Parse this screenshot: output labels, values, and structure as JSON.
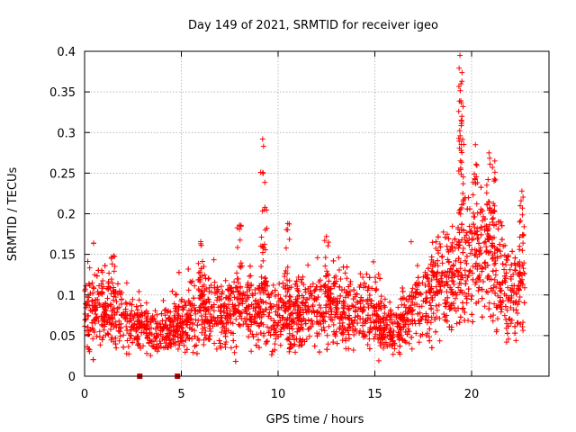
{
  "chart_data": {
    "type": "scatter",
    "title": "Day 149 of 2021, SRMTID for receiver igeo",
    "xlabel": "GPS time / hours",
    "ylabel": "SRMTID / TECUs",
    "xlim": [
      0,
      24
    ],
    "ylim": [
      0,
      0.4
    ],
    "xticks": [
      0,
      5,
      10,
      15,
      20
    ],
    "xtick_labels": [
      "0",
      "5",
      "10",
      "15",
      "20"
    ],
    "yticks": [
      0,
      0.05,
      0.1,
      0.15,
      0.2,
      0.25,
      0.3,
      0.35,
      0.4
    ],
    "ytick_labels": [
      "0",
      "0.05",
      "0.1",
      "0.15",
      "0.2",
      "0.25",
      "0.3",
      "0.35",
      "0.4"
    ],
    "grid": true,
    "marker": "+",
    "color": "#ff0000",
    "zero_marker_color": "#cc0000",
    "series": [
      {
        "name": "SRMTID",
        "x_range": [
          0,
          22.75
        ],
        "n_points": 3200,
        "baseline_profile": [
          [
            0.0,
            0.075
          ],
          [
            1.0,
            0.085
          ],
          [
            2.0,
            0.07
          ],
          [
            3.0,
            0.06
          ],
          [
            4.0,
            0.055
          ],
          [
            5.0,
            0.065
          ],
          [
            6.0,
            0.08
          ],
          [
            7.0,
            0.075
          ],
          [
            8.0,
            0.08
          ],
          [
            9.0,
            0.085
          ],
          [
            10.0,
            0.075
          ],
          [
            11.0,
            0.08
          ],
          [
            12.0,
            0.085
          ],
          [
            13.0,
            0.08
          ],
          [
            14.0,
            0.08
          ],
          [
            15.0,
            0.075
          ],
          [
            16.0,
            0.055
          ],
          [
            17.0,
            0.08
          ],
          [
            18.0,
            0.11
          ],
          [
            19.0,
            0.12
          ],
          [
            20.0,
            0.16
          ],
          [
            21.0,
            0.15
          ],
          [
            22.0,
            0.1
          ],
          [
            22.75,
            0.11
          ]
        ],
        "peaks": [
          {
            "x": 9.2,
            "y": 0.292
          },
          {
            "x": 9.3,
            "y": 0.205
          },
          {
            "x": 8.0,
            "y": 0.186
          },
          {
            "x": 10.5,
            "y": 0.188
          },
          {
            "x": 12.5,
            "y": 0.172
          },
          {
            "x": 19.4,
            "y": 0.395
          },
          {
            "x": 19.45,
            "y": 0.36
          },
          {
            "x": 19.5,
            "y": 0.32
          },
          {
            "x": 20.2,
            "y": 0.285
          },
          {
            "x": 20.9,
            "y": 0.275
          },
          {
            "x": 21.2,
            "y": 0.265
          },
          {
            "x": 22.6,
            "y": 0.228
          },
          {
            "x": 6.0,
            "y": 0.163
          },
          {
            "x": 1.5,
            "y": 0.148
          }
        ],
        "zero_points": [
          {
            "x": 2.85,
            "y": 0
          },
          {
            "x": 4.8,
            "y": 0
          }
        ]
      }
    ]
  }
}
